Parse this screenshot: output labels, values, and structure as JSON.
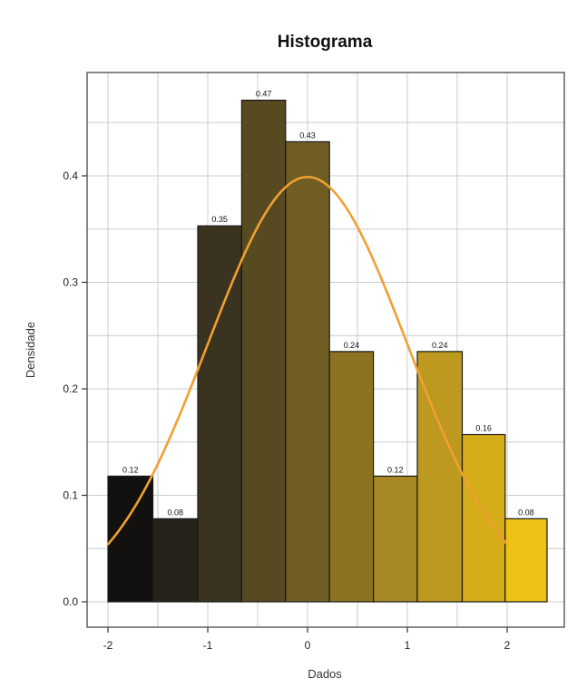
{
  "chart_data": {
    "type": "bar",
    "title": "Histograma",
    "xlabel": "Dados",
    "ylabel": "Densidade",
    "xlim": [
      -2.0,
      2.4
    ],
    "ylim": [
      0,
      0.48
    ],
    "xticks": [
      "-2",
      "-1",
      "0",
      "1",
      "2"
    ],
    "xtick_values": [
      -2,
      -1,
      0,
      1,
      2
    ],
    "yticks": [
      "0.0",
      "0.1",
      "0.2",
      "0.3",
      "0.4"
    ],
    "ytick_values": [
      0.0,
      0.1,
      0.2,
      0.3,
      0.4
    ],
    "grid": true,
    "bins": [
      {
        "x0": -2.0,
        "x1": -1.55,
        "value": 0.118,
        "label": "0.12",
        "color": "#121110"
      },
      {
        "x0": -1.55,
        "x1": -1.1,
        "value": 0.078,
        "label": "0.08",
        "color": "#26231b"
      },
      {
        "x0": -1.1,
        "x1": -0.66,
        "value": 0.353,
        "label": "0.35",
        "color": "#3a3320"
      },
      {
        "x0": -0.66,
        "x1": -0.22,
        "value": 0.471,
        "label": "0.47",
        "color": "#574a21"
      },
      {
        "x0": -0.22,
        "x1": 0.22,
        "value": 0.432,
        "label": "0.43",
        "color": "#6f5d23"
      },
      {
        "x0": 0.22,
        "x1": 0.66,
        "value": 0.235,
        "label": "0.24",
        "color": "#8c7322"
      },
      {
        "x0": 0.66,
        "x1": 1.1,
        "value": 0.118,
        "label": "0.12",
        "color": "#a68723"
      },
      {
        "x0": 1.1,
        "x1": 1.55,
        "value": 0.235,
        "label": "0.24",
        "color": "#bd9a1f"
      },
      {
        "x0": 1.55,
        "x1": 1.98,
        "value": 0.157,
        "label": "0.16",
        "color": "#d4ad19"
      },
      {
        "x0": 1.98,
        "x1": 2.4,
        "value": 0.078,
        "label": "0.08",
        "color": "#edc214"
      }
    ],
    "curve": {
      "type": "normal-density",
      "mean": 0,
      "sd": 1,
      "x_range": [
        -2,
        2
      ],
      "color": "#f0a030"
    },
    "colors": {
      "panel_border": "#555555",
      "grid": "#c8ccd2",
      "bar_stroke": "#1a1a1a",
      "text": "#222222"
    }
  }
}
